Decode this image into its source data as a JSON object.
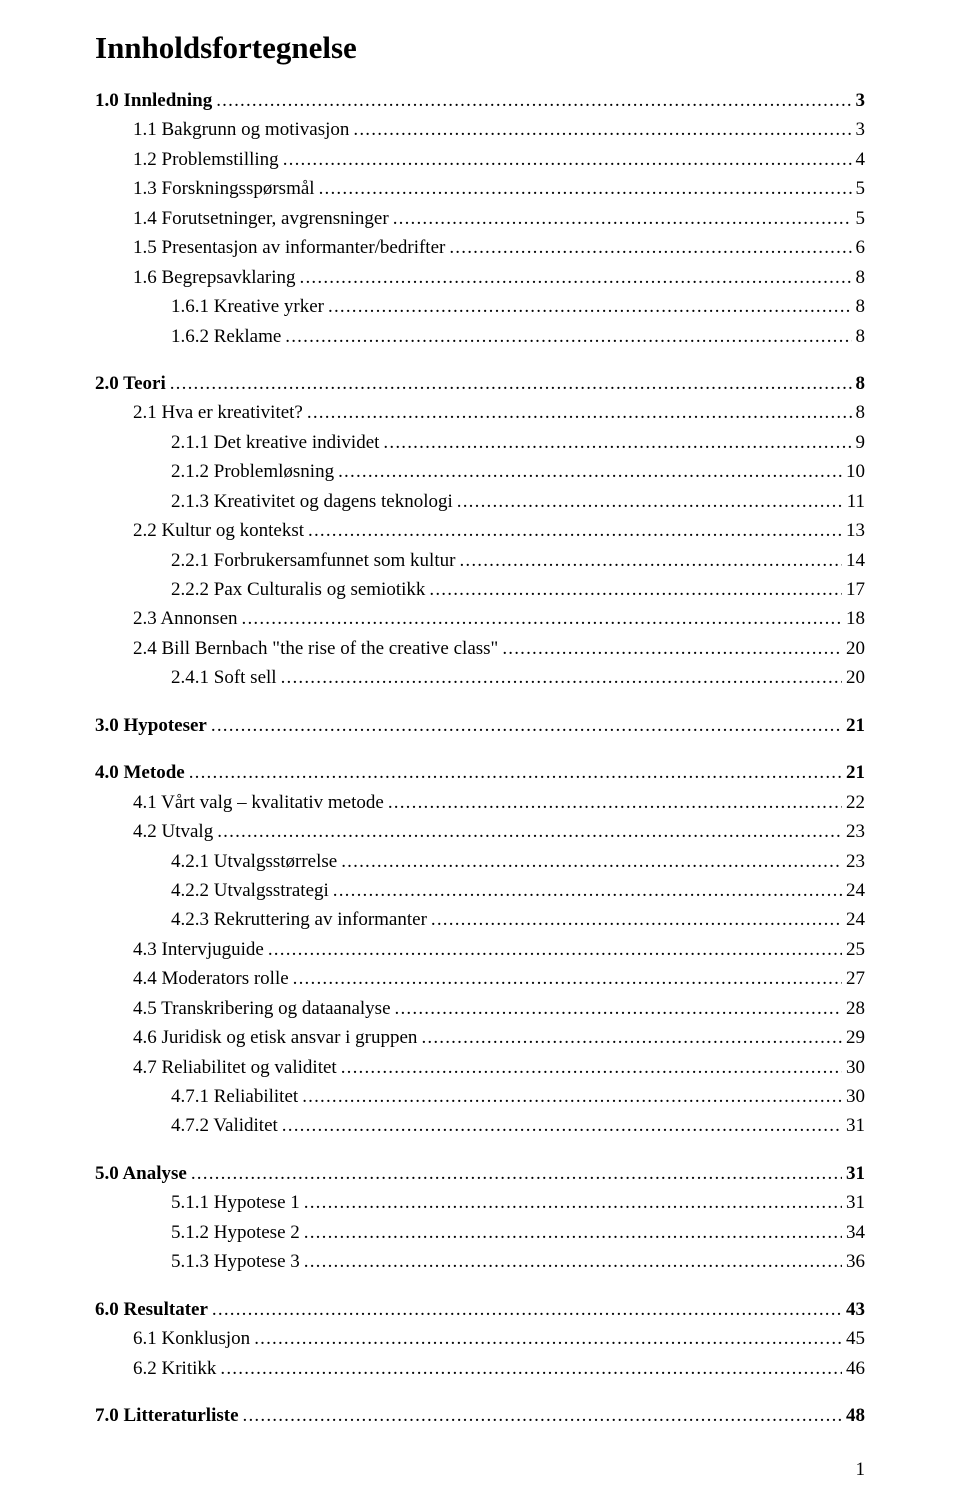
{
  "doc_title": "Innholdsfortegnelse",
  "page_number": "1",
  "sections": [
    {
      "entries": [
        {
          "label": "1.0 Innledning",
          "page": "3",
          "indent": 0,
          "bold": true
        },
        {
          "label": "1.1 Bakgrunn og motivasjon",
          "page": "3",
          "indent": 1,
          "bold": false
        },
        {
          "label": "1.2 Problemstilling",
          "page": "4",
          "indent": 1,
          "bold": false
        },
        {
          "label": "1.3 Forskningsspørsmål",
          "page": "5",
          "indent": 1,
          "bold": false
        },
        {
          "label": "1.4 Forutsetninger, avgrensninger",
          "page": "5",
          "indent": 1,
          "bold": false
        },
        {
          "label": "1.5 Presentasjon av informanter/bedrifter",
          "page": "6",
          "indent": 1,
          "bold": false
        },
        {
          "label": "1.6 Begrepsavklaring",
          "page": "8",
          "indent": 1,
          "bold": false
        },
        {
          "label": "1.6.1 Kreative yrker",
          "page": "8",
          "indent": 2,
          "bold": false
        },
        {
          "label": "1.6.2 Reklame",
          "page": "8",
          "indent": 2,
          "bold": false
        }
      ]
    },
    {
      "entries": [
        {
          "label": "2.0 Teori",
          "page": "8",
          "indent": 0,
          "bold": true
        },
        {
          "label": "2.1 Hva er kreativitet?",
          "page": "8",
          "indent": 1,
          "bold": false
        },
        {
          "label": "2.1.1 Det kreative individet",
          "page": "9",
          "indent": 2,
          "bold": false
        },
        {
          "label": "2.1.2 Problemløsning",
          "page": "10",
          "indent": 2,
          "bold": false
        },
        {
          "label": "2.1.3 Kreativitet og dagens teknologi",
          "page": "11",
          "indent": 2,
          "bold": false
        },
        {
          "label": "2.2 Kultur og kontekst",
          "page": "13",
          "indent": 1,
          "bold": false
        },
        {
          "label": "2.2.1 Forbrukersamfunnet som kultur",
          "page": "14",
          "indent": 2,
          "bold": false
        },
        {
          "label": "2.2.2 Pax Culturalis og semiotikk",
          "page": "17",
          "indent": 2,
          "bold": false
        },
        {
          "label": "2.3 Annonsen",
          "page": "18",
          "indent": 1,
          "bold": false
        },
        {
          "label": "2.4 Bill Bernbach \"the rise of the creative class\"",
          "page": "20",
          "indent": 1,
          "bold": false
        },
        {
          "label": "2.4.1 Soft sell",
          "page": "20",
          "indent": 2,
          "bold": false
        }
      ]
    },
    {
      "entries": [
        {
          "label": "3.0 Hypoteser",
          "page": "21",
          "indent": 0,
          "bold": true
        }
      ]
    },
    {
      "entries": [
        {
          "label": "4.0 Metode",
          "page": "21",
          "indent": 0,
          "bold": true
        },
        {
          "label": "4.1 Vårt valg – kvalitativ metode",
          "page": "22",
          "indent": 1,
          "bold": false
        },
        {
          "label": "4.2 Utvalg",
          "page": "23",
          "indent": 1,
          "bold": false
        },
        {
          "label": "4.2.1 Utvalgsstørrelse",
          "page": "23",
          "indent": 2,
          "bold": false
        },
        {
          "label": "4.2.2 Utvalgsstrategi",
          "page": "24",
          "indent": 2,
          "bold": false
        },
        {
          "label": "4.2.3 Rekruttering av informanter",
          "page": "24",
          "indent": 2,
          "bold": false
        },
        {
          "label": "4.3 Intervjuguide",
          "page": "25",
          "indent": 1,
          "bold": false
        },
        {
          "label": "4.4 Moderators rolle",
          "page": "27",
          "indent": 1,
          "bold": false
        },
        {
          "label": "4.5 Transkribering og dataanalyse",
          "page": "28",
          "indent": 1,
          "bold": false
        },
        {
          "label": "4.6 Juridisk og etisk ansvar i gruppen",
          "page": "29",
          "indent": 1,
          "bold": false
        },
        {
          "label": "4.7 Reliabilitet og validitet",
          "page": "30",
          "indent": 1,
          "bold": false
        },
        {
          "label": "4.7.1 Reliabilitet",
          "page": "30",
          "indent": 2,
          "bold": false
        },
        {
          "label": "4.7.2 Validitet",
          "page": "31",
          "indent": 2,
          "bold": false
        }
      ]
    },
    {
      "entries": [
        {
          "label": "5.0 Analyse",
          "page": "31",
          "indent": 0,
          "bold": true
        },
        {
          "label": "5.1.1 Hypotese 1",
          "page": "31",
          "indent": 2,
          "bold": false
        },
        {
          "label": "5.1.2 Hypotese 2",
          "page": "34",
          "indent": 2,
          "bold": false
        },
        {
          "label": "5.1.3 Hypotese 3",
          "page": "36",
          "indent": 2,
          "bold": false
        }
      ]
    },
    {
      "entries": [
        {
          "label": "6.0 Resultater",
          "page": "43",
          "indent": 0,
          "bold": true
        },
        {
          "label": "6.1 Konklusjon",
          "page": "45",
          "indent": 1,
          "bold": false
        },
        {
          "label": "6.2 Kritikk",
          "page": "46",
          "indent": 1,
          "bold": false
        }
      ]
    },
    {
      "entries": [
        {
          "label": "7.0 Litteraturliste",
          "page": "48",
          "indent": 0,
          "bold": true
        }
      ]
    }
  ]
}
